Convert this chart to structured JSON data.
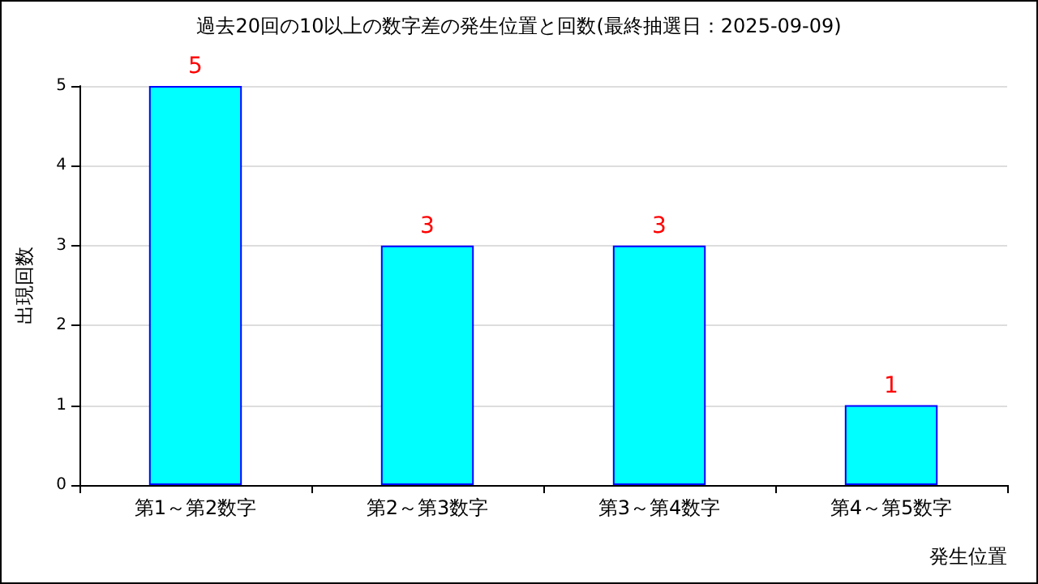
{
  "chart_data": {
    "type": "bar",
    "title": "過去20回の10以上の数字差の発生位置と回数(最終抽選日：2025-09-09)",
    "xlabel": "発生位置",
    "ylabel": "出現回数",
    "categories": [
      "第1～第2数字",
      "第2～第3数字",
      "第3～第4数字",
      "第4～第5数字"
    ],
    "values": [
      5,
      3,
      3,
      1
    ],
    "color": "#00ffff",
    "ylim": [
      0,
      5
    ],
    "yticks": [
      0,
      1,
      2,
      3,
      4,
      5
    ],
    "grid": "y",
    "data_labels": true
  }
}
